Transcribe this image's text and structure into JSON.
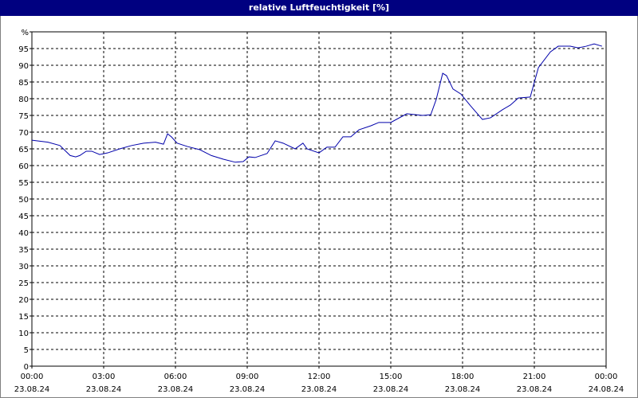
{
  "chart_data": {
    "type": "line",
    "title": "relative Luftfeuchtigkeit [%]",
    "x": [
      0,
      0.67,
      1.17,
      1.6,
      1.83,
      2,
      2.27,
      2.5,
      2.83,
      3.17,
      3.67,
      4.17,
      4.67,
      5.17,
      5.5,
      5.67,
      5.83,
      6.07,
      6.5,
      7,
      7.5,
      8,
      8.5,
      8.83,
      9.07,
      9.33,
      9.83,
      10.17,
      10.5,
      11,
      11.33,
      11.5,
      12,
      12.33,
      12.67,
      13,
      13.33,
      13.67,
      14.17,
      14.5,
      15,
      15.67,
      16.33,
      16.67,
      16.9,
      17.17,
      17.33,
      17.6,
      17.93,
      18.33,
      18.83,
      19.17,
      19.67,
      20,
      20.33,
      20.83,
      21.17,
      21.67,
      22,
      22.5,
      22.83,
      23.17,
      23.5,
      23.83
    ],
    "series": [
      {
        "color": "#0000aa",
        "values": [
          67.6,
          67,
          66,
          63,
          62.6,
          63,
          64.3,
          64.3,
          63.3,
          63.8,
          65,
          66,
          66.7,
          67,
          66.4,
          69.5,
          68.6,
          66.7,
          65.7,
          64.8,
          63,
          61.9,
          61,
          61.2,
          62.6,
          62.4,
          63.6,
          67.4,
          66.7,
          65,
          66.7,
          65,
          63.8,
          65.5,
          65.5,
          68.6,
          68.6,
          70.7,
          71.9,
          72.9,
          72.9,
          75.5,
          75,
          75.2,
          79.8,
          87.6,
          86.9,
          82.9,
          81.4,
          77.9,
          73.8,
          74.3,
          76.7,
          78.1,
          80.2,
          80.5,
          89.3,
          94,
          95.7,
          95.7,
          95.2,
          95.7,
          96.4,
          95.7
        ]
      }
    ],
    "xlim": [
      0,
      24
    ],
    "xticks": [
      {
        "value": 0,
        "label": "00:00"
      },
      {
        "value": 3,
        "label": "03:00"
      },
      {
        "value": 6,
        "label": "06:00"
      },
      {
        "value": 9,
        "label": "09:00"
      },
      {
        "value": 12,
        "label": "12:00"
      },
      {
        "value": 15,
        "label": "15:00"
      },
      {
        "value": 18,
        "label": "18:00"
      },
      {
        "value": 21,
        "label": "21:00"
      },
      {
        "value": 24,
        "label": "00:00"
      }
    ],
    "xtick_dates": [
      "23.08.24",
      "23.08.24",
      "23.08.24",
      "23.08.24",
      "23.08.24",
      "23.08.24",
      "23.08.24",
      "23.08.24",
      "24.08.24"
    ],
    "ylim": [
      0,
      100
    ],
    "yticks": [
      0,
      5,
      10,
      15,
      20,
      25,
      30,
      35,
      40,
      45,
      50,
      55,
      60,
      65,
      70,
      75,
      80,
      85,
      90,
      95,
      {
        "value": 100,
        "label": "%"
      }
    ],
    "grid": true
  }
}
